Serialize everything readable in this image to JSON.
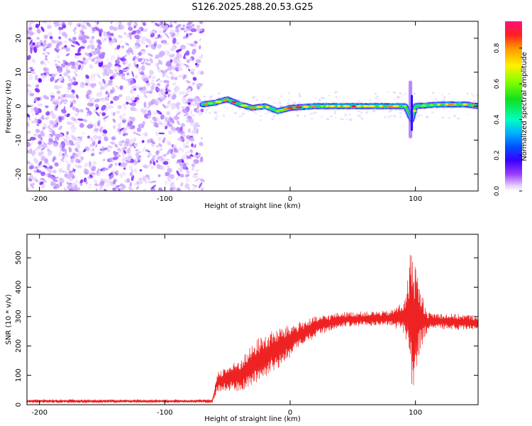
{
  "chart_data": [
    {
      "type": "heatmap",
      "title": "S126.2025.288.20.53.G25",
      "xlabel": "Height of straight line (km)",
      "ylabel": "Frequency (Hz)",
      "xlim": [
        -210,
        150
      ],
      "ylim": [
        -25,
        25
      ],
      "x_ticks": [
        -200,
        -100,
        0,
        100
      ],
      "x_tick_labels": [
        "-200",
        "-100",
        "0",
        "100"
      ],
      "y_ticks": [
        -20,
        -10,
        0,
        10,
        20
      ],
      "y_tick_labels": [
        "-20",
        "-10",
        "0",
        "10",
        "20"
      ],
      "noise_region_x": [
        -210,
        -70
      ],
      "signal_start_x": -70,
      "ridge": [
        {
          "x": -70,
          "y": 0.5
        },
        {
          "x": -60,
          "y": 1.0
        },
        {
          "x": -50,
          "y": 2.0
        },
        {
          "x": -40,
          "y": 0.5
        },
        {
          "x": -30,
          "y": -0.5
        },
        {
          "x": -20,
          "y": 0.0
        },
        {
          "x": -10,
          "y": -1.5
        },
        {
          "x": 0,
          "y": -0.5
        },
        {
          "x": 20,
          "y": 0.0
        },
        {
          "x": 40,
          "y": 0.0
        },
        {
          "x": 60,
          "y": 0.0
        },
        {
          "x": 80,
          "y": 0.0
        },
        {
          "x": 92,
          "y": 0.0
        },
        {
          "x": 97,
          "y": -4.0
        },
        {
          "x": 100,
          "y": 0.0
        },
        {
          "x": 120,
          "y": 0.5
        },
        {
          "x": 140,
          "y": 0.5
        },
        {
          "x": 150,
          "y": 0.0
        }
      ],
      "ridge_spike": {
        "x": 96,
        "y_range": [
          -9,
          7
        ]
      }
    },
    {
      "type": "colorbar",
      "label": "Normalized spectral amplitude",
      "range": [
        0,
        0.95
      ],
      "ticks": [
        0.0,
        0.2,
        0.4,
        0.6,
        0.8
      ],
      "tick_labels": [
        "0.0",
        "0.2",
        "0.4",
        "0.6",
        "0.8"
      ]
    },
    {
      "type": "line",
      "title": "",
      "xlabel": "Height of straight line (km)",
      "ylabel": "SNR (10 * v/v)",
      "xlim": [
        -210,
        150
      ],
      "ylim": [
        0,
        580
      ],
      "x_ticks": [
        -200,
        -100,
        0,
        100
      ],
      "x_tick_labels": [
        "-200",
        "-100",
        "0",
        "100"
      ],
      "y_ticks": [
        0,
        100,
        200,
        300,
        400,
        500
      ],
      "y_tick_labels": [
        "0",
        "100",
        "200",
        "300",
        "400",
        "500"
      ],
      "color": "#ee2222",
      "envelope": [
        {
          "x": -210,
          "mean": 12,
          "amp": 6
        },
        {
          "x": -62,
          "mean": 12,
          "amp": 6
        },
        {
          "x": -58,
          "mean": 80,
          "amp": 35
        },
        {
          "x": -40,
          "mean": 100,
          "amp": 55
        },
        {
          "x": -25,
          "mean": 150,
          "amp": 80
        },
        {
          "x": -10,
          "mean": 190,
          "amp": 70
        },
        {
          "x": 5,
          "mean": 230,
          "amp": 50
        },
        {
          "x": 20,
          "mean": 265,
          "amp": 35
        },
        {
          "x": 40,
          "mean": 290,
          "amp": 25
        },
        {
          "x": 80,
          "mean": 295,
          "amp": 25
        },
        {
          "x": 92,
          "mean": 300,
          "amp": 60
        },
        {
          "x": 97,
          "mean": 300,
          "amp": 270
        },
        {
          "x": 103,
          "mean": 290,
          "amp": 120
        },
        {
          "x": 110,
          "mean": 285,
          "amp": 30
        },
        {
          "x": 150,
          "mean": 280,
          "amp": 25
        }
      ]
    }
  ]
}
